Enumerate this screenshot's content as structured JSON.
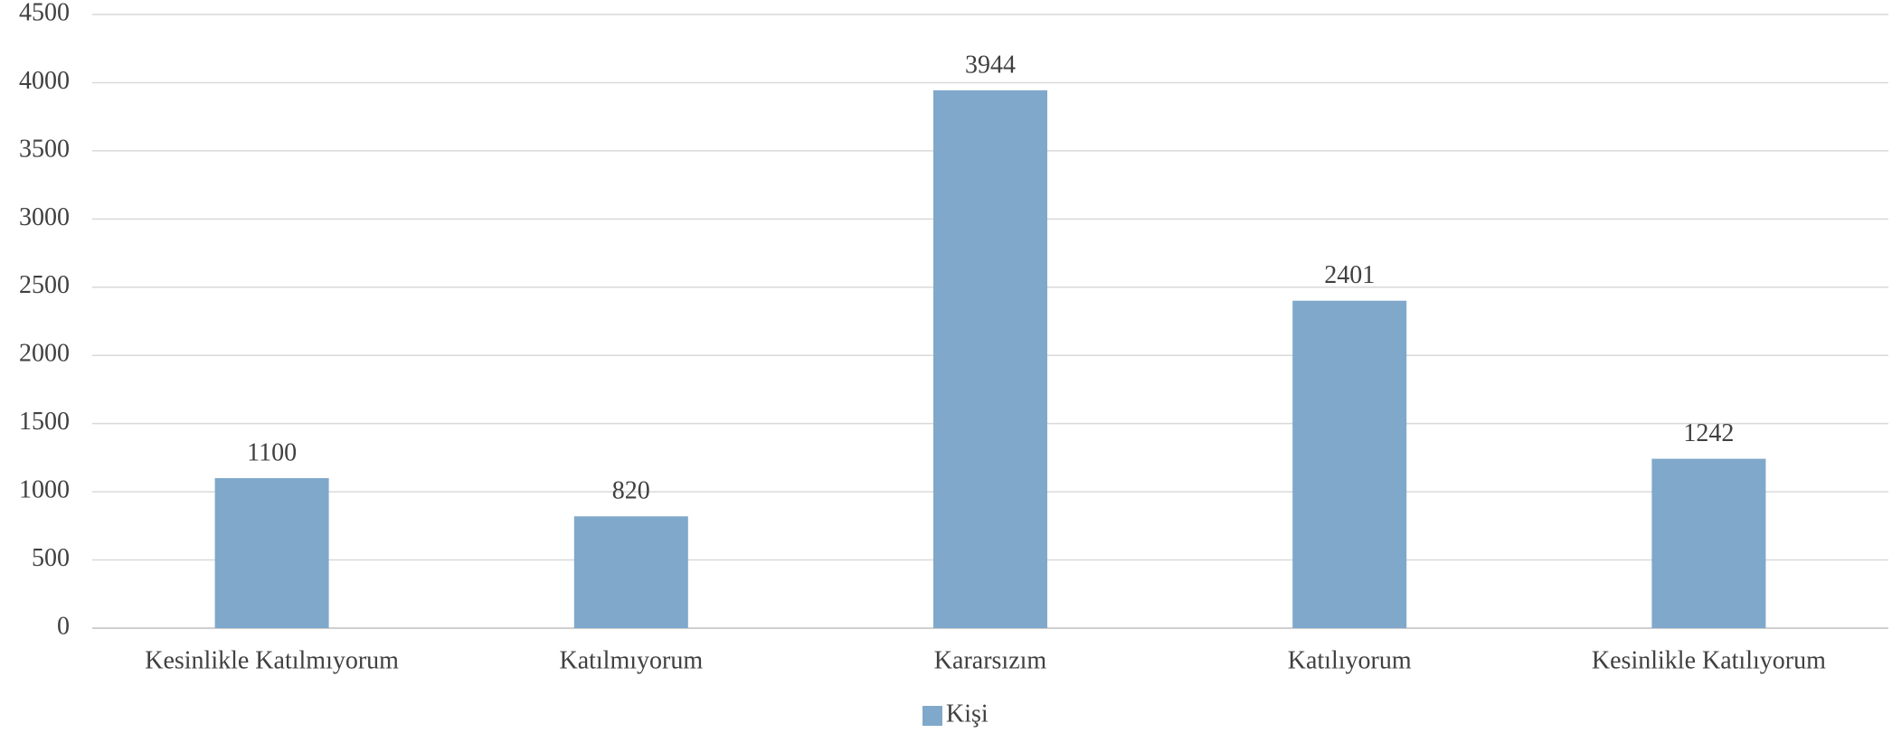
{
  "chart_data": {
    "type": "bar",
    "categories": [
      "Kesinlikle Katılmıyorum",
      "Katılmıyorum",
      "Kararsızım",
      "Katılıyorum",
      "Kesinlikle Katılıyorum"
    ],
    "series": [
      {
        "name": "Kişi",
        "color": "#7fa8cb",
        "values": [
          1100,
          820,
          3944,
          2401,
          1242
        ]
      }
    ],
    "ylim": [
      0,
      4500
    ],
    "yticks": [
      0,
      500,
      1000,
      1500,
      2000,
      2500,
      3000,
      3500,
      4000,
      4500
    ],
    "grid": true,
    "legend": "bottom",
    "data_labels": true
  }
}
